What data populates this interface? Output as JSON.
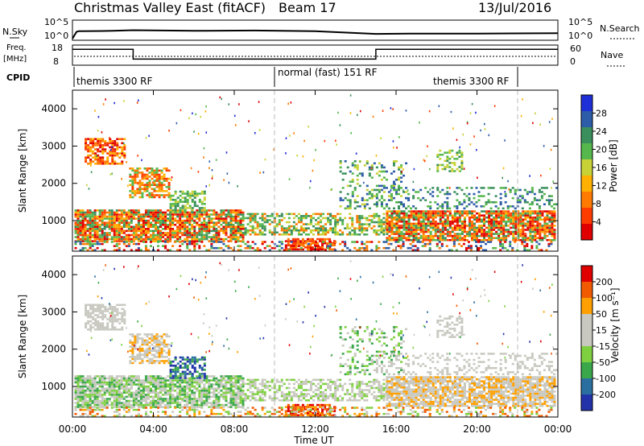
{
  "header": {
    "station": "Christmas Valley East (fitACF)",
    "beam": "Beam 17",
    "date": "13/Jul/2016"
  },
  "panels": {
    "nsky_label": "N.Sky",
    "nsearch_label": "N.Search",
    "nsky_ticks": [
      "10^5",
      "10^0"
    ],
    "nsearch_ticks": [
      "10^5",
      "10^0"
    ],
    "freq_label_1": "Freq.",
    "freq_label_2": "[MHz]",
    "freq_ticks": [
      "18",
      "8"
    ],
    "nave_label": "Nave",
    "nave_ticks": [
      "60",
      "0"
    ],
    "cpid_label": "CPID",
    "cpid_segments": [
      "themis 3300 RF",
      "normal (fast) 151 RF",
      "themis 3300 RF"
    ]
  },
  "colors": {
    "power_bar": [
      "#1f2fd8",
      "#2d5ca8",
      "#3a8f5c",
      "#56b84c",
      "#c8d236",
      "#ffb000",
      "#ff7a00",
      "#ff3c00",
      "#e00000"
    ],
    "velocity_bar": [
      "#e10000",
      "#f25a00",
      "#ffa000",
      "#c8c8c0",
      "#c8c8c0",
      "#7fd040",
      "#3aa84a",
      "#2a6fa0",
      "#2233aa"
    ]
  },
  "chart_data": [
    {
      "type": "heatmap",
      "title": "Power",
      "ylabel": "Slant Range [km]",
      "y_ticks": [
        "4000",
        "3000",
        "2000",
        "1000"
      ],
      "ylim": [
        180,
        4500
      ],
      "colorbar_label": "Power [dB]",
      "colorbar_ticks": [
        "28",
        "24",
        "20",
        "16",
        "12",
        "8",
        "4"
      ]
    },
    {
      "type": "heatmap",
      "title": "Velocity",
      "ylabel": "Slant Range [km]",
      "y_ticks": [
        "4000",
        "3000",
        "2000",
        "1000"
      ],
      "ylim": [
        180,
        4500
      ],
      "xlabel": "Time UT",
      "x_ticks": [
        "00:00",
        "04:00",
        "08:00",
        "12:00",
        "16:00",
        "20:00",
        "00:00"
      ],
      "xlim": [
        0,
        24
      ],
      "colorbar_label": "Velocity [m s⁻¹]",
      "colorbar_ticks": [
        "200",
        "100",
        "50",
        "15",
        "-15",
        "-50",
        "-100",
        "-200"
      ]
    },
    {
      "type": "line",
      "title": "N.Sky / N.Search",
      "x": [
        0,
        0.2,
        0.3,
        2,
        3,
        6,
        9,
        12,
        15,
        17,
        20,
        24
      ],
      "y_nsky_log10": [
        0,
        2.0,
        2.2,
        2.3,
        2.5,
        2.3,
        2.4,
        2.2,
        1.4,
        1.5,
        1.5,
        1.6
      ]
    },
    {
      "type": "line",
      "title": "Freq. / Nave",
      "x": [
        0,
        3,
        3,
        15,
        15,
        24
      ],
      "freq_mhz": [
        16.5,
        16.5,
        11.0,
        11.0,
        16.5,
        16.5
      ],
      "nave_boundaries_x": [
        3,
        15
      ]
    }
  ]
}
